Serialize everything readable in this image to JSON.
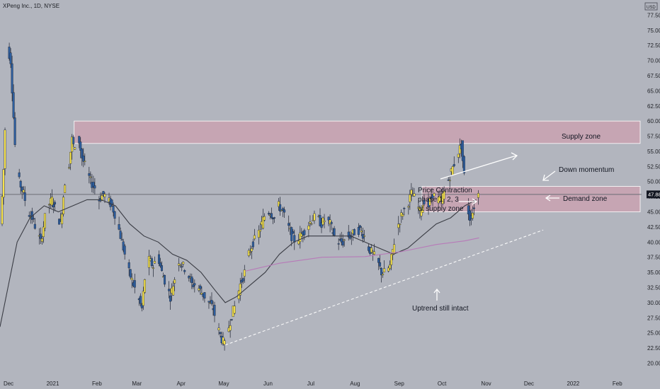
{
  "header": {
    "symbol_line": "XPeng Inc., 1D, NYSE",
    "currency": "USD"
  },
  "colors": {
    "background": "#b2b5be",
    "up_candle": "#f7e34a",
    "down_candle": "#2d5fa0",
    "wick": "#1f2433",
    "zone_fill": "#c9a2b2",
    "zone_edge": "#ffffff",
    "ma_fast": "#3a3c44",
    "ma_slow": "#b77ab8",
    "trendline": "#ffffff",
    "price_line": "#6b6e76"
  },
  "chart_data": {
    "type": "candlestick",
    "y_axis_side": "right",
    "ylim": [
      19,
      80
    ],
    "y_ticks": [
      "20.00",
      "22.50",
      "25.00",
      "27.50",
      "30.00",
      "32.50",
      "35.00",
      "37.50",
      "40.00",
      "42.50",
      "45.00",
      "47.50",
      "50.00",
      "52.50",
      "55.00",
      "57.50",
      "60.00",
      "62.50",
      "65.00",
      "67.50",
      "70.00",
      "72.50",
      "75.00",
      "77.50"
    ],
    "x_ticks": [
      "Dec",
      "2021",
      "Feb",
      "Mar",
      "Apr",
      "May",
      "Jun",
      "Jul",
      "Aug",
      "Sep",
      "Oct",
      "Nov",
      "Dec",
      "2022",
      "Feb"
    ],
    "x_tick_days": [
      0,
      31,
      62,
      90,
      121,
      151,
      182,
      212,
      243,
      274,
      304,
      335,
      365,
      396,
      427
    ],
    "xlim": [
      -6,
      444
    ],
    "last_price": "47.88",
    "price_path": [
      [
        -5,
        43
      ],
      [
        -3,
        52
      ],
      [
        0,
        72
      ],
      [
        2,
        70
      ],
      [
        5,
        56
      ],
      [
        8,
        50
      ],
      [
        11,
        48
      ],
      [
        14,
        45
      ],
      [
        17,
        44
      ],
      [
        20,
        42
      ],
      [
        23,
        40
      ],
      [
        26,
        44
      ],
      [
        28,
        46
      ],
      [
        31,
        47
      ],
      [
        34,
        45
      ],
      [
        37,
        43
      ],
      [
        40,
        50
      ],
      [
        43,
        53
      ],
      [
        45,
        57
      ],
      [
        47,
        55
      ],
      [
        49,
        58
      ],
      [
        52,
        54
      ],
      [
        55,
        52
      ],
      [
        58,
        50
      ],
      [
        61,
        49
      ],
      [
        64,
        47
      ],
      [
        67,
        48
      ],
      [
        70,
        47
      ],
      [
        73,
        46
      ],
      [
        76,
        44
      ],
      [
        79,
        41
      ],
      [
        82,
        38
      ],
      [
        85,
        35
      ],
      [
        88,
        33
      ],
      [
        91,
        31
      ],
      [
        94,
        29
      ],
      [
        96,
        34
      ],
      [
        99,
        37
      ],
      [
        102,
        36
      ],
      [
        105,
        38
      ],
      [
        108,
        35
      ],
      [
        111,
        33
      ],
      [
        114,
        31
      ],
      [
        117,
        34
      ],
      [
        120,
        37
      ],
      [
        123,
        36
      ],
      [
        126,
        35
      ],
      [
        129,
        33
      ],
      [
        132,
        33
      ],
      [
        135,
        32
      ],
      [
        138,
        31
      ],
      [
        141,
        30
      ],
      [
        144,
        29
      ],
      [
        147,
        26
      ],
      [
        150,
        24
      ],
      [
        152,
        23
      ],
      [
        154,
        25
      ],
      [
        157,
        28
      ],
      [
        160,
        30
      ],
      [
        163,
        33
      ],
      [
        166,
        35
      ],
      [
        169,
        38
      ],
      [
        172,
        40
      ],
      [
        175,
        41
      ],
      [
        178,
        43
      ],
      [
        181,
        45
      ],
      [
        184,
        45
      ],
      [
        187,
        44
      ],
      [
        190,
        46
      ],
      [
        193,
        45
      ],
      [
        196,
        43
      ],
      [
        199,
        41
      ],
      [
        202,
        40
      ],
      [
        205,
        41
      ],
      [
        208,
        42
      ],
      [
        211,
        43
      ],
      [
        214,
        44
      ],
      [
        217,
        44
      ],
      [
        220,
        43
      ],
      [
        223,
        44
      ],
      [
        226,
        43
      ],
      [
        229,
        41
      ],
      [
        232,
        40
      ],
      [
        235,
        40
      ],
      [
        238,
        41
      ],
      [
        241,
        41
      ],
      [
        244,
        42
      ],
      [
        247,
        42
      ],
      [
        250,
        41
      ],
      [
        253,
        39
      ],
      [
        256,
        38
      ],
      [
        259,
        37
      ],
      [
        262,
        35
      ],
      [
        265,
        35
      ],
      [
        268,
        36
      ],
      [
        271,
        40
      ],
      [
        274,
        43
      ],
      [
        277,
        45
      ],
      [
        280,
        46
      ],
      [
        283,
        48
      ],
      [
        286,
        47
      ],
      [
        289,
        45
      ],
      [
        292,
        47
      ],
      [
        295,
        46
      ],
      [
        298,
        48
      ],
      [
        301,
        47
      ],
      [
        304,
        47
      ],
      [
        307,
        49
      ],
      [
        310,
        51
      ],
      [
        313,
        53
      ],
      [
        316,
        55
      ],
      [
        318,
        56
      ],
      [
        320,
        51
      ],
      [
        322,
        46
      ],
      [
        324,
        44
      ],
      [
        326,
        45
      ],
      [
        328,
        47
      ],
      [
        330,
        48
      ]
    ],
    "ma_fast": [
      [
        -6,
        26
      ],
      [
        0,
        33
      ],
      [
        6,
        40
      ],
      [
        15,
        44
      ],
      [
        25,
        46
      ],
      [
        35,
        45
      ],
      [
        45,
        46
      ],
      [
        55,
        47
      ],
      [
        65,
        47
      ],
      [
        75,
        46
      ],
      [
        85,
        43
      ],
      [
        95,
        41
      ],
      [
        105,
        40
      ],
      [
        115,
        38
      ],
      [
        125,
        37
      ],
      [
        135,
        35
      ],
      [
        145,
        32
      ],
      [
        152,
        30
      ],
      [
        160,
        31
      ],
      [
        170,
        33
      ],
      [
        180,
        35
      ],
      [
        190,
        38
      ],
      [
        200,
        40
      ],
      [
        210,
        41
      ],
      [
        220,
        41
      ],
      [
        230,
        41
      ],
      [
        240,
        41
      ],
      [
        250,
        40
      ],
      [
        260,
        39
      ],
      [
        270,
        38
      ],
      [
        280,
        39
      ],
      [
        290,
        41
      ],
      [
        300,
        43
      ],
      [
        310,
        44
      ],
      [
        320,
        46
      ],
      [
        328,
        47
      ]
    ],
    "ma_slow": [
      [
        166,
        35.2
      ],
      [
        190,
        36.5
      ],
      [
        220,
        37.5
      ],
      [
        250,
        37.6
      ],
      [
        275,
        38.4
      ],
      [
        300,
        39.6
      ],
      [
        320,
        40.2
      ],
      [
        330,
        40.7
      ]
    ],
    "trendline": [
      [
        152,
        23
      ],
      [
        375,
        42
      ]
    ],
    "zones": [
      {
        "label": "Supply zone",
        "y0": 56.3,
        "y1": 60,
        "x0": 46,
        "x1": 443
      },
      {
        "label": "Demand zone",
        "y0": 45,
        "y1": 49.2,
        "x0": 290,
        "x1": 443
      }
    ],
    "annotations": [
      {
        "text": "Supply zone"
      },
      {
        "text": "Down momentum"
      },
      {
        "text": "Demand zone"
      },
      {
        "text": "Price Contraction"
      },
      {
        "text": "phase 1, 2, 3"
      },
      {
        "text": "at supply zone"
      },
      {
        "text": "Uptrend still intact"
      }
    ],
    "grid": false
  }
}
